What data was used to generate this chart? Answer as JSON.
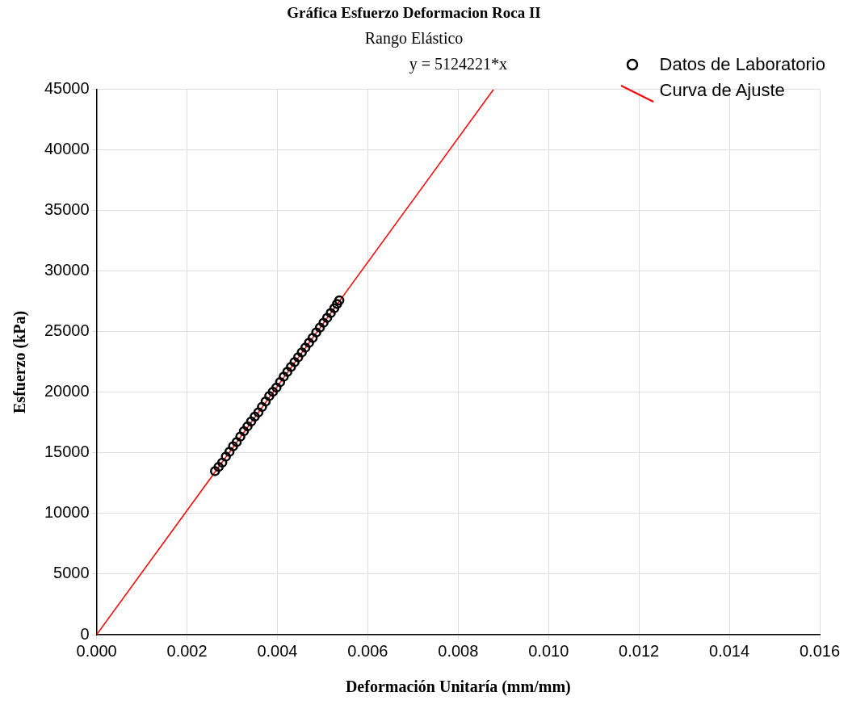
{
  "chart_data": {
    "type": "scatter",
    "title": "Gráfica Esfuerzo Deformacion Roca II",
    "subtitle": "Rango Elástico",
    "annotations": [
      "y = 5124221*x"
    ],
    "xlabel": "Deformación Unitaría (mm/mm)",
    "ylabel": "Esfuerzo (kPa)",
    "series": [
      {
        "name": "Datos de Laboratorio",
        "marker": "circle",
        "color": "#000000",
        "x": [
          0.00262,
          0.0027,
          0.00278,
          0.00286,
          0.00294,
          0.00302,
          0.0031,
          0.00318,
          0.00326,
          0.00334,
          0.00342,
          0.0035,
          0.00358,
          0.00366,
          0.00374,
          0.00382,
          0.0039,
          0.00398,
          0.00406,
          0.00414,
          0.00422,
          0.0043,
          0.00438,
          0.00446,
          0.00454,
          0.00462,
          0.0047,
          0.00478,
          0.00486,
          0.00494,
          0.00502,
          0.0051,
          0.00518,
          0.00526,
          0.00532,
          0.00537
        ],
        "values": [
          13500,
          13850,
          14200,
          14700,
          15100,
          15550,
          15900,
          16350,
          16800,
          17200,
          17600,
          18000,
          18350,
          18800,
          19250,
          19700,
          20050,
          20400,
          20850,
          21300,
          21700,
          22100,
          22500,
          22900,
          23300,
          23700,
          24100,
          24500,
          24950,
          25350,
          25750,
          26150,
          26550,
          26950,
          27300,
          27600
        ]
      },
      {
        "name": "Curva de Ajuste",
        "type": "line",
        "marker": "none",
        "line_style": "solid",
        "color": "#ff0000",
        "x": [
          0,
          0.008782
        ],
        "values": [
          0,
          45000
        ]
      }
    ],
    "xlim": [
      0,
      0.016
    ],
    "xticks": [
      {
        "value": 0,
        "label": "0.000"
      },
      {
        "value": 0.002,
        "label": "0.002"
      },
      {
        "value": 0.004,
        "label": "0.004"
      },
      {
        "value": 0.006,
        "label": "0.006"
      },
      {
        "value": 0.008,
        "label": "0.008"
      },
      {
        "value": 0.01,
        "label": "0.010"
      },
      {
        "value": 0.012,
        "label": "0.012"
      },
      {
        "value": 0.014,
        "label": "0.014"
      },
      {
        "value": 0.016,
        "label": "0.016"
      }
    ],
    "ylim": [
      0,
      45000
    ],
    "yticks": [
      0,
      5000,
      10000,
      15000,
      20000,
      25000,
      30000,
      35000,
      40000,
      45000
    ],
    "grid": true,
    "legend": "top right"
  }
}
